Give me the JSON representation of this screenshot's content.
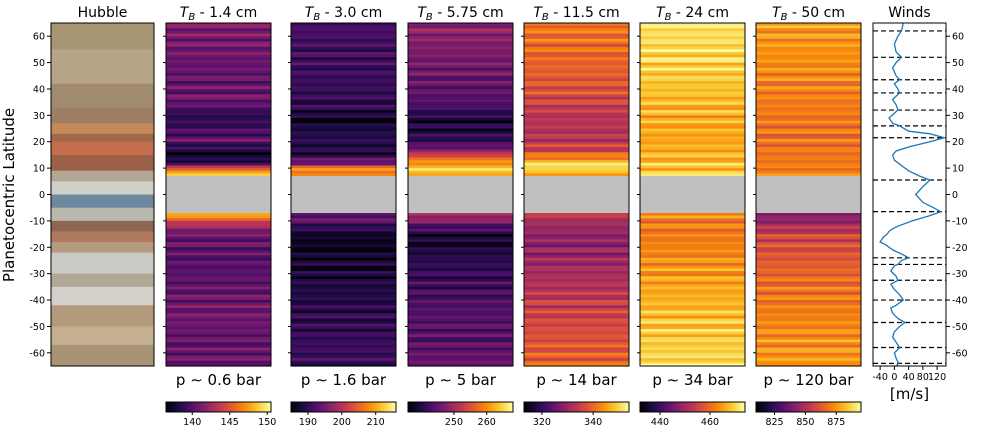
{
  "chart_data": {
    "type": "heatmap",
    "ylabel": "Planetocentric Latitude",
    "ylim": [
      -65,
      65
    ],
    "y_ticks": [
      -60,
      -50,
      -40,
      -30,
      -20,
      -10,
      0,
      10,
      20,
      30,
      40,
      50,
      60
    ],
    "masked_latitude_band": [
      -7,
      7
    ],
    "mask_color": "#c0c0c0",
    "colormap": "inferno",
    "hubble_panel": {
      "title": "Hubble",
      "bands": [
        {
          "lat": [
            55,
            65
          ],
          "color": "#a89574"
        },
        {
          "lat": [
            42,
            55
          ],
          "color": "#b5a486"
        },
        {
          "lat": [
            33,
            42
          ],
          "color": "#a08b6e"
        },
        {
          "lat": [
            27,
            33
          ],
          "color": "#9c7f64"
        },
        {
          "lat": [
            23,
            27
          ],
          "color": "#c48a5a"
        },
        {
          "lat": [
            20,
            23
          ],
          "color": "#a06a4a"
        },
        {
          "lat": [
            15,
            20
          ],
          "color": "#c46e4e"
        },
        {
          "lat": [
            9,
            15
          ],
          "color": "#9c6048"
        },
        {
          "lat": [
            5,
            9
          ],
          "color": "#b4a894"
        },
        {
          "lat": [
            0,
            5
          ],
          "color": "#cfd0c8"
        },
        {
          "lat": [
            -5,
            0
          ],
          "color": "#6e88a0"
        },
        {
          "lat": [
            -10,
            -5
          ],
          "color": "#b8b8ae"
        },
        {
          "lat": [
            -14,
            -10
          ],
          "color": "#8c6650"
        },
        {
          "lat": [
            -18,
            -14
          ],
          "color": "#b07a5e"
        },
        {
          "lat": [
            -22,
            -18
          ],
          "color": "#b69a80"
        },
        {
          "lat": [
            -30,
            -22
          ],
          "color": "#c9cbc6"
        },
        {
          "lat": [
            -35,
            -30
          ],
          "color": "#b0a894"
        },
        {
          "lat": [
            -42,
            -35
          ],
          "color": "#d2d0c8"
        },
        {
          "lat": [
            -50,
            -42
          ],
          "color": "#b29a7a"
        },
        {
          "lat": [
            -57,
            -50
          ],
          "color": "#c4b090"
        },
        {
          "lat": [
            -65,
            -57
          ],
          "color": "#a89474"
        }
      ]
    },
    "panels": [
      {
        "title_sym": "T",
        "title_sub": "B",
        "title_rest": " - 1.4 cm",
        "pressure": "p ∼ 0.6 bar",
        "cbar_ticks": [
          "140",
          "145",
          "150"
        ],
        "cbar_min": 136.5,
        "cbar_max": 150.5,
        "profile_lat": [
          -65,
          -55,
          -45,
          -35,
          -25,
          -15,
          -10,
          -8,
          8,
          10,
          12,
          16,
          20,
          25,
          30,
          35,
          45,
          55,
          65
        ],
        "profile_val": [
          0.3,
          0.28,
          0.32,
          0.28,
          0.25,
          0.3,
          0.55,
          0.85,
          0.85,
          0.6,
          0.12,
          0.05,
          0.28,
          0.2,
          0.15,
          0.3,
          0.28,
          0.32,
          0.35
        ]
      },
      {
        "title_sym": "T",
        "title_sub": "B",
        "title_rest": " - 3.0 cm",
        "pressure": "p ∼ 1.6 bar",
        "cbar_ticks": [
          "190",
          "200",
          "210"
        ],
        "cbar_min": 185,
        "cbar_max": 216,
        "profile_lat": [
          -65,
          -55,
          -45,
          -35,
          -25,
          -18,
          -15,
          -10,
          -8,
          8,
          10,
          12,
          16,
          20,
          25,
          28,
          32,
          40,
          50,
          65
        ],
        "profile_val": [
          0.2,
          0.18,
          0.15,
          0.12,
          0.08,
          0.05,
          0.08,
          0.25,
          0.3,
          0.78,
          0.7,
          0.3,
          0.1,
          0.15,
          0.12,
          0.05,
          0.15,
          0.18,
          0.2,
          0.22
        ]
      },
      {
        "title_sym": "T",
        "title_sub": "B",
        "title_rest": " - 5.75 cm",
        "pressure": "p ∼ 5 bar",
        "cbar_ticks": [
          "250",
          "260"
        ],
        "cbar_min": 236,
        "cbar_max": 268,
        "profile_lat": [
          -65,
          -55,
          -45,
          -35,
          -25,
          -18,
          -15,
          -10,
          -8,
          8,
          10,
          12,
          15,
          18,
          22,
          28,
          35,
          45,
          55,
          65
        ],
        "profile_val": [
          0.3,
          0.25,
          0.25,
          0.2,
          0.15,
          0.08,
          0.1,
          0.35,
          0.45,
          0.9,
          0.85,
          0.78,
          0.55,
          0.25,
          0.15,
          0.1,
          0.25,
          0.3,
          0.35,
          0.4
        ]
      },
      {
        "title_sym": "T",
        "title_sub": "B",
        "title_rest": " - 11.5 cm",
        "pressure": "p ∼ 14 bar",
        "cbar_ticks": [
          "320",
          "340"
        ],
        "cbar_min": 313,
        "cbar_max": 354,
        "profile_lat": [
          -65,
          -55,
          -45,
          -35,
          -25,
          -18,
          -12,
          -8,
          8,
          10,
          12,
          14,
          17,
          22,
          30,
          40,
          50,
          65
        ],
        "profile_val": [
          0.65,
          0.6,
          0.55,
          0.48,
          0.42,
          0.38,
          0.42,
          0.5,
          0.8,
          0.95,
          0.88,
          0.72,
          0.55,
          0.48,
          0.5,
          0.6,
          0.65,
          0.7
        ]
      },
      {
        "title_sym": "T",
        "title_sub": "B",
        "title_rest": " - 24 cm",
        "pressure": "p ∼ 34 bar",
        "cbar_ticks": [
          "440",
          "460"
        ],
        "cbar_min": 432,
        "cbar_max": 474,
        "profile_lat": [
          -65,
          -55,
          -45,
          -35,
          -25,
          -15,
          -8,
          8,
          12,
          20,
          30,
          40,
          50,
          65
        ],
        "profile_val": [
          0.92,
          0.88,
          0.85,
          0.8,
          0.75,
          0.7,
          0.72,
          0.88,
          0.85,
          0.8,
          0.82,
          0.86,
          0.9,
          0.93
        ]
      },
      {
        "title_sym": "T",
        "title_sub": "B",
        "title_rest": " - 50 cm",
        "pressure": "p ∼ 120 bar",
        "cbar_ticks": [
          "825",
          "850",
          "875"
        ],
        "cbar_min": 810,
        "cbar_max": 895,
        "profile_lat": [
          -65,
          -55,
          -45,
          -35,
          -25,
          -15,
          -10,
          -8,
          8,
          12,
          20,
          30,
          40,
          50,
          65
        ],
        "profile_val": [
          0.78,
          0.75,
          0.72,
          0.68,
          0.62,
          0.55,
          0.4,
          0.35,
          0.72,
          0.7,
          0.68,
          0.7,
          0.72,
          0.75,
          0.78
        ]
      }
    ],
    "winds": {
      "title": "Winds",
      "xlabel": "[m/s]",
      "xlim": [
        -60,
        145
      ],
      "x_ticks": [
        -40,
        0,
        40,
        80,
        120
      ],
      "y_ticks_right": [
        -60,
        -50,
        -40,
        -30,
        -20,
        -10,
        0,
        10,
        20,
        30,
        40,
        50,
        60
      ],
      "line_color": "#1f77b4",
      "jet_latitudes": [
        62,
        52,
        43.5,
        38.5,
        32,
        26,
        21.5,
        5.5,
        -6.5,
        -24,
        -26.5,
        -32.5,
        -40,
        -48.5,
        -58,
        -64
      ],
      "profile_lat": [
        -65,
        -64,
        -62,
        -60,
        -58,
        -56,
        -54,
        -52,
        -50,
        -48.5,
        -47,
        -45,
        -43,
        -42,
        -40,
        -38,
        -36,
        -34,
        -32.5,
        -31,
        -29,
        -27,
        -26.5,
        -25,
        -24,
        -22.5,
        -21,
        -19,
        -18,
        -16,
        -15,
        -14,
        -13,
        -12,
        -10,
        -8,
        -6.5,
        -5,
        -3,
        0,
        3,
        5.5,
        7,
        9,
        11,
        13,
        15,
        16.5,
        18,
        20,
        21.5,
        23,
        24,
        26,
        27,
        29,
        32,
        34,
        36,
        38.5,
        40,
        42,
        43.5,
        45,
        48,
        50,
        52,
        54,
        57,
        60,
        62,
        65
      ],
      "profile_u": [
        5,
        12,
        5,
        0,
        15,
        5,
        -5,
        0,
        15,
        30,
        10,
        -5,
        -10,
        5,
        25,
        15,
        0,
        -10,
        10,
        5,
        -10,
        0,
        10,
        20,
        40,
        20,
        -5,
        -25,
        -40,
        -30,
        -20,
        -15,
        -5,
        10,
        50,
        100,
        130,
        110,
        80,
        60,
        80,
        100,
        70,
        40,
        20,
        0,
        -5,
        5,
        40,
        100,
        140,
        100,
        40,
        15,
        -5,
        -15,
        10,
        5,
        -5,
        15,
        10,
        0,
        15,
        5,
        -5,
        5,
        20,
        5,
        0,
        10,
        20,
        25
      ]
    }
  }
}
